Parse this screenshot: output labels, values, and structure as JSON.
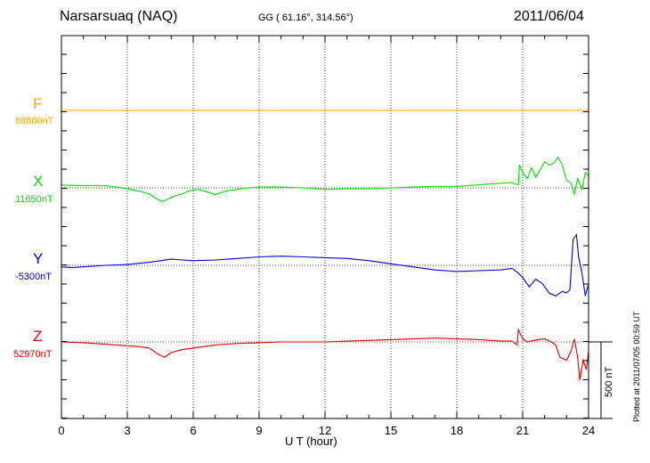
{
  "header": {
    "station": "Narsarsuaq (NAQ)",
    "coords": "GG ( 61.16°, 314.56°)",
    "date": "2011/06/04"
  },
  "footer": {
    "plotted": "Plotted at 2011/07/05 00:59 UT",
    "scale": "500 nT"
  },
  "chart_data": {
    "type": "line",
    "xlabel": "U T (hour)",
    "xlim": [
      0,
      24
    ],
    "x_ticks": [
      0,
      3,
      6,
      9,
      12,
      15,
      18,
      21,
      24
    ],
    "grid": true,
    "scale_bar_nT": 500,
    "series": [
      {
        "name": "F",
        "baseline_label": "88880nT",
        "baseline_nT": 88880,
        "color": "#ffa500",
        "x": [
          0,
          24
        ],
        "y": [
          0,
          0
        ]
      },
      {
        "name": "X",
        "baseline_label": "11650nT",
        "baseline_nT": 11650,
        "color": "#00e000",
        "x": [
          0,
          1,
          2,
          3,
          3.5,
          4,
          4.3,
          4.6,
          4.9,
          5.2,
          5.5,
          5.8,
          6.2,
          6.6,
          7,
          7.5,
          8,
          8.5,
          9,
          10,
          11,
          12,
          13,
          14,
          15,
          16,
          17,
          18,
          19,
          20,
          20.5,
          20.8,
          20.85,
          21,
          21.2,
          21.4,
          21.6,
          21.8,
          22,
          22.2,
          22.4,
          22.6,
          22.8,
          23,
          23.2,
          23.35,
          23.5,
          23.7,
          23.85,
          24
        ],
        "y": [
          18,
          15,
          15,
          -5,
          -20,
          -40,
          -70,
          -90,
          -70,
          -50,
          -40,
          -20,
          -10,
          -25,
          -45,
          -20,
          -10,
          0,
          5,
          5,
          0,
          -10,
          -5,
          -5,
          0,
          5,
          10,
          10,
          20,
          30,
          35,
          20,
          150,
          100,
          60,
          130,
          70,
          120,
          170,
          150,
          160,
          200,
          150,
          50,
          30,
          -40,
          60,
          -10,
          100,
          80
        ]
      },
      {
        "name": "Y",
        "baseline_label": "-5300nT",
        "baseline_nT": -5300,
        "color": "#0000e0",
        "x": [
          0,
          0.5,
          1,
          2,
          3,
          4,
          4.5,
          5,
          5.5,
          6,
          7,
          8,
          9,
          10,
          11,
          12,
          13,
          14,
          15,
          16,
          17,
          18,
          19,
          20,
          20.5,
          20.8,
          21,
          21.3,
          21.6,
          21.9,
          22.2,
          22.5,
          22.8,
          23,
          23.15,
          23.3,
          23.45,
          23.55,
          23.7,
          23.85,
          24
        ],
        "y": [
          -10,
          -15,
          -10,
          0,
          5,
          20,
          30,
          40,
          35,
          30,
          35,
          45,
          55,
          60,
          55,
          50,
          45,
          30,
          10,
          -10,
          -30,
          -40,
          -35,
          -30,
          -20,
          -50,
          -80,
          -140,
          -90,
          -120,
          -180,
          -200,
          -170,
          -180,
          -160,
          170,
          200,
          50,
          -50,
          -200,
          -120
        ]
      },
      {
        "name": "Z",
        "baseline_label": "52970nT",
        "baseline_nT": 52970,
        "color": "#e00000",
        "x": [
          0,
          1,
          2,
          3,
          3.5,
          4,
          4.4,
          4.7,
          5,
          5.5,
          6,
          6.5,
          7,
          8,
          9,
          10,
          11,
          12,
          13,
          14,
          15,
          16,
          17,
          18,
          19,
          20,
          20.5,
          20.75,
          20.8,
          21,
          21.2,
          21.5,
          22,
          22.3,
          22.5,
          22.7,
          23,
          23.2,
          23.35,
          23.5,
          23.6,
          23.75,
          23.9,
          24
        ],
        "y": [
          0,
          -5,
          -15,
          -25,
          -30,
          -40,
          -80,
          -100,
          -70,
          -50,
          -40,
          -30,
          -20,
          -10,
          -5,
          0,
          0,
          0,
          5,
          10,
          15,
          20,
          25,
          20,
          15,
          5,
          5,
          -20,
          80,
          20,
          0,
          10,
          20,
          0,
          -20,
          -100,
          -120,
          -60,
          20,
          -100,
          -250,
          -120,
          -180,
          -60
        ]
      }
    ]
  }
}
